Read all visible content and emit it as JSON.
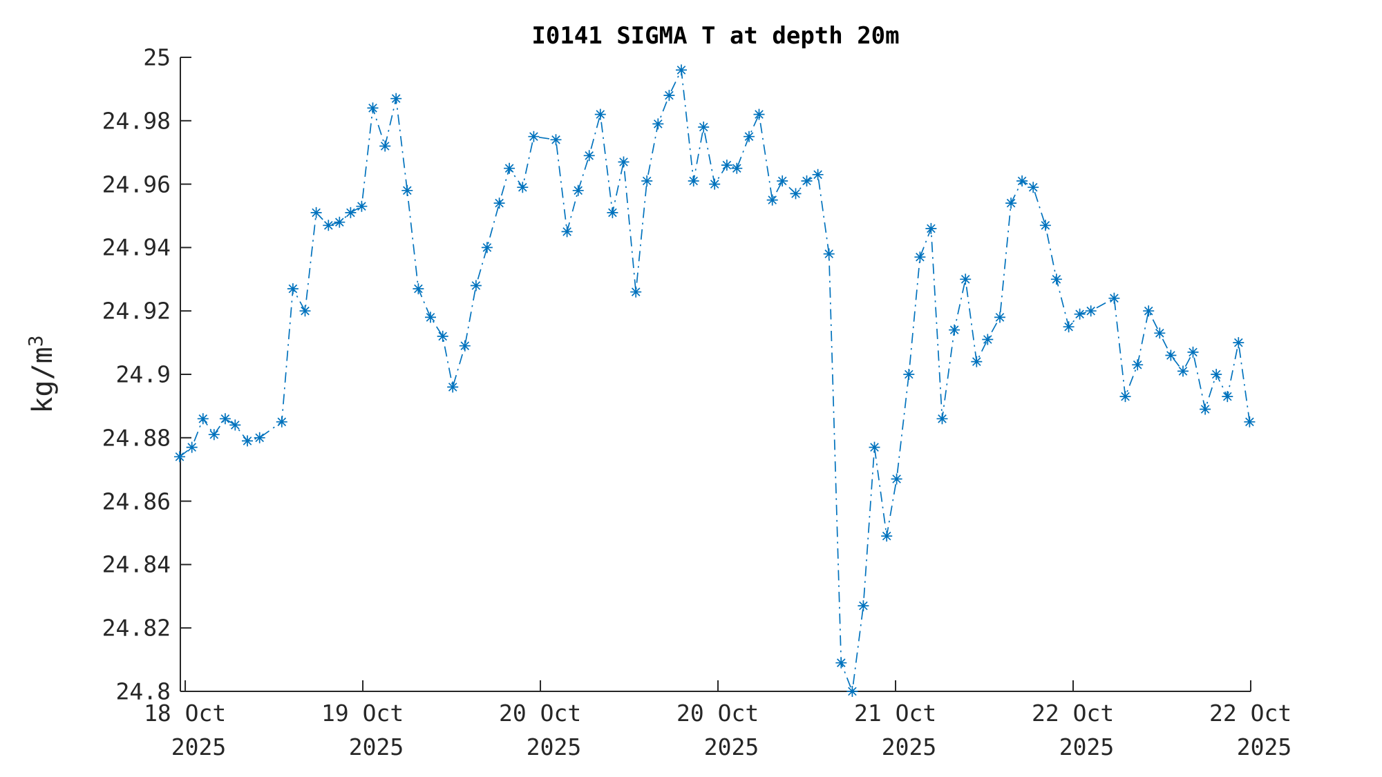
{
  "figure": {
    "title": "I0141 SIGMA T at depth 20m",
    "background_color": "#ffffff"
  },
  "chart_data": {
    "type": "line",
    "title": "I0141 SIGMA T at depth 20m",
    "xlabel": "",
    "ylabel": "kg/m",
    "ylabel_exponent": "3",
    "line_style": "dash-dot",
    "marker": "asterisk",
    "line_color": "#0072BD",
    "axis_color": "#262626",
    "grid": false,
    "legend": "none",
    "x_unit": "hours since 18 Oct 2025 00:00",
    "xlim": [
      15.56,
      112.0
    ],
    "ylim": [
      24.8,
      25.0
    ],
    "y_ticks": [
      {
        "value": 24.8,
        "label": "24.8"
      },
      {
        "value": 24.82,
        "label": "24.82"
      },
      {
        "value": 24.84,
        "label": "24.84"
      },
      {
        "value": 24.86,
        "label": "24.86"
      },
      {
        "value": 24.88,
        "label": "24.88"
      },
      {
        "value": 24.9,
        "label": "24.9"
      },
      {
        "value": 24.92,
        "label": "24.92"
      },
      {
        "value": 24.94,
        "label": "24.94"
      },
      {
        "value": 24.96,
        "label": "24.96"
      },
      {
        "value": 24.98,
        "label": "24.98"
      },
      {
        "value": 25.0,
        "label": "25"
      }
    ],
    "x_ticks": [
      {
        "value": 16,
        "date": "18 Oct",
        "year": "2025"
      },
      {
        "value": 32,
        "date": "19 Oct",
        "year": "2025"
      },
      {
        "value": 48,
        "date": "20 Oct",
        "year": "2025"
      },
      {
        "value": 64,
        "date": "20 Oct",
        "year": "2025"
      },
      {
        "value": 80,
        "date": "21 Oct",
        "year": "2025"
      },
      {
        "value": 96,
        "date": "22 Oct",
        "year": "2025"
      },
      {
        "value": 112,
        "date": "22 Oct",
        "year": "2025"
      }
    ],
    "series": [
      {
        "name": "sigma-t",
        "points": [
          [
            15.5,
            24.874
          ],
          [
            16.6,
            24.877
          ],
          [
            17.6,
            24.886
          ],
          [
            18.6,
            24.881
          ],
          [
            19.6,
            24.886
          ],
          [
            20.5,
            24.884
          ],
          [
            21.6,
            24.879
          ],
          [
            22.7,
            24.88
          ],
          [
            24.7,
            24.885
          ],
          [
            25.7,
            24.927
          ],
          [
            26.8,
            24.92
          ],
          [
            27.8,
            24.951
          ],
          [
            28.9,
            24.947
          ],
          [
            29.9,
            24.948
          ],
          [
            30.9,
            24.951
          ],
          [
            31.9,
            24.953
          ],
          [
            32.9,
            24.984
          ],
          [
            34.0,
            24.972
          ],
          [
            35.0,
            24.987
          ],
          [
            36.0,
            24.958
          ],
          [
            37.0,
            24.927
          ],
          [
            38.1,
            24.918
          ],
          [
            39.2,
            24.912
          ],
          [
            40.1,
            24.896
          ],
          [
            41.2,
            24.909
          ],
          [
            42.2,
            24.928
          ],
          [
            43.2,
            24.94
          ],
          [
            44.3,
            24.954
          ],
          [
            45.2,
            24.965
          ],
          [
            46.4,
            24.959
          ],
          [
            47.4,
            24.975
          ],
          [
            49.4,
            24.974
          ],
          [
            50.4,
            24.945
          ],
          [
            51.4,
            24.958
          ],
          [
            52.4,
            24.969
          ],
          [
            53.4,
            24.982
          ],
          [
            54.5,
            24.951
          ],
          [
            55.5,
            24.967
          ],
          [
            56.6,
            24.926
          ],
          [
            57.6,
            24.961
          ],
          [
            58.6,
            24.979
          ],
          [
            59.6,
            24.988
          ],
          [
            60.7,
            24.996
          ],
          [
            61.8,
            24.961
          ],
          [
            62.7,
            24.978
          ],
          [
            63.7,
            24.96
          ],
          [
            64.8,
            24.966
          ],
          [
            65.7,
            24.965
          ],
          [
            66.8,
            24.975
          ],
          [
            67.7,
            24.982
          ],
          [
            68.9,
            24.955
          ],
          [
            69.8,
            24.961
          ],
          [
            71.0,
            24.957
          ],
          [
            72.0,
            24.961
          ],
          [
            73.0,
            24.963
          ],
          [
            74.0,
            24.938
          ],
          [
            75.1,
            24.809
          ],
          [
            76.1,
            24.8
          ],
          [
            77.1,
            24.827
          ],
          [
            78.1,
            24.877
          ],
          [
            79.2,
            24.849
          ],
          [
            80.1,
            24.867
          ],
          [
            81.2,
            24.9
          ],
          [
            82.2,
            24.937
          ],
          [
            83.2,
            24.946
          ],
          [
            84.2,
            24.886
          ],
          [
            85.3,
            24.914
          ],
          [
            86.3,
            24.93
          ],
          [
            87.3,
            24.904
          ],
          [
            88.3,
            24.911
          ],
          [
            89.4,
            24.918
          ],
          [
            90.4,
            24.954
          ],
          [
            91.4,
            24.961
          ],
          [
            92.4,
            24.959
          ],
          [
            93.5,
            24.947
          ],
          [
            94.5,
            24.93
          ],
          [
            95.6,
            24.915
          ],
          [
            96.6,
            24.919
          ],
          [
            97.6,
            24.92
          ],
          [
            99.7,
            24.924
          ],
          [
            100.7,
            24.893
          ],
          [
            101.8,
            24.903
          ],
          [
            102.8,
            24.92
          ],
          [
            103.8,
            24.913
          ],
          [
            104.8,
            24.906
          ],
          [
            105.9,
            24.901
          ],
          [
            106.8,
            24.907
          ],
          [
            107.9,
            24.889
          ],
          [
            108.9,
            24.9
          ],
          [
            109.9,
            24.893
          ],
          [
            110.9,
            24.91
          ],
          [
            111.9,
            24.885
          ]
        ]
      }
    ]
  }
}
